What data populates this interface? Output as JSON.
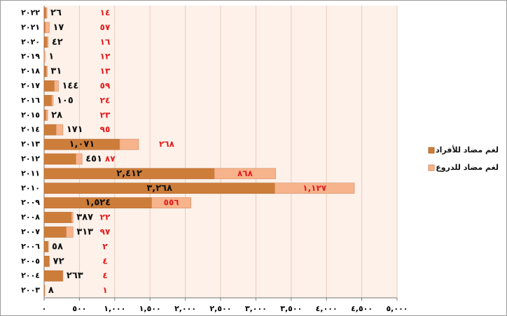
{
  "chart_data": {
    "type": "stacked_barh",
    "categories": [
      "٢٠٢٢",
      "٢٠٢١",
      "٢٠٢٠",
      "٢٠١٩",
      "٢٠١٨",
      "٢٠١٧",
      "٢٠١٦",
      "٢٠١٥",
      "٢٠١٤",
      "٢٠١٣",
      "٢٠١٢",
      "٢٠١١",
      "٢٠١٠",
      "٢٠٠٩",
      "٢٠٠٨",
      "٢٠٠٧",
      "٢٠٠٦",
      "٢٠٠٥",
      "٢٠٠٤",
      "٢٠٠٣"
    ],
    "series": [
      {
        "name": "لغم مضاد للأفراد",
        "color": "#cd7d3a",
        "values": [
          26,
          17,
          42,
          1,
          31,
          144,
          105,
          28,
          171,
          1071,
          451,
          2412,
          3268,
          1524,
          387,
          313,
          58,
          72,
          263,
          8
        ],
        "value_labels": [
          "٢٦",
          "١٧",
          "٤٢",
          "١",
          "٣١",
          "١٤٤",
          "١٠٥",
          "٢٨",
          "١٧١",
          "١,٠٧١",
          "٤٥١",
          "٢,٤١٢",
          "٣,٢٦٨",
          "١,٥٢٤",
          "٣٨٧",
          "٣١٣",
          "٥٨",
          "٧٢",
          "٢٦٣",
          "٨"
        ]
      },
      {
        "name": "لغم مضاد للدروع",
        "color": "#f6b38c",
        "values": [
          14,
          57,
          16,
          12,
          13,
          59,
          24,
          23,
          95,
          268,
          87,
          868,
          1127,
          556,
          22,
          97,
          2,
          4,
          4,
          1
        ],
        "value_labels": [
          "١٤",
          "٥٧",
          "١٦",
          "١٢",
          "١٣",
          "٥٩",
          "٢٤",
          "٢٣",
          "٩٥",
          "٢٦٨",
          "٨٧",
          "٨٦٨",
          "١,١٢٧",
          "٥٥٦",
          "٢٢",
          "٩٧",
          "٢",
          "٤",
          "٤",
          "١"
        ]
      }
    ],
    "xlim": [
      0,
      5000
    ],
    "xticks": [
      {
        "value": 0,
        "label": "٠"
      },
      {
        "value": 500,
        "label": "٥٠٠"
      },
      {
        "value": 1000,
        "label": "١,٠٠٠"
      },
      {
        "value": 1500,
        "label": "١,٥٠٠"
      },
      {
        "value": 2000,
        "label": "٢,٠٠٠"
      },
      {
        "value": 2500,
        "label": "٢,٥٠٠"
      },
      {
        "value": 3000,
        "label": "٣,٠٠٠"
      },
      {
        "value": 3500,
        "label": "٣,٥٠٠"
      },
      {
        "value": 4000,
        "label": "٤,٠٠٠"
      },
      {
        "value": 4500,
        "label": "٤,٥٠٠"
      },
      {
        "value": 5000,
        "label": "٥,٠٠٠"
      }
    ],
    "grid": true,
    "legend": "right"
  }
}
